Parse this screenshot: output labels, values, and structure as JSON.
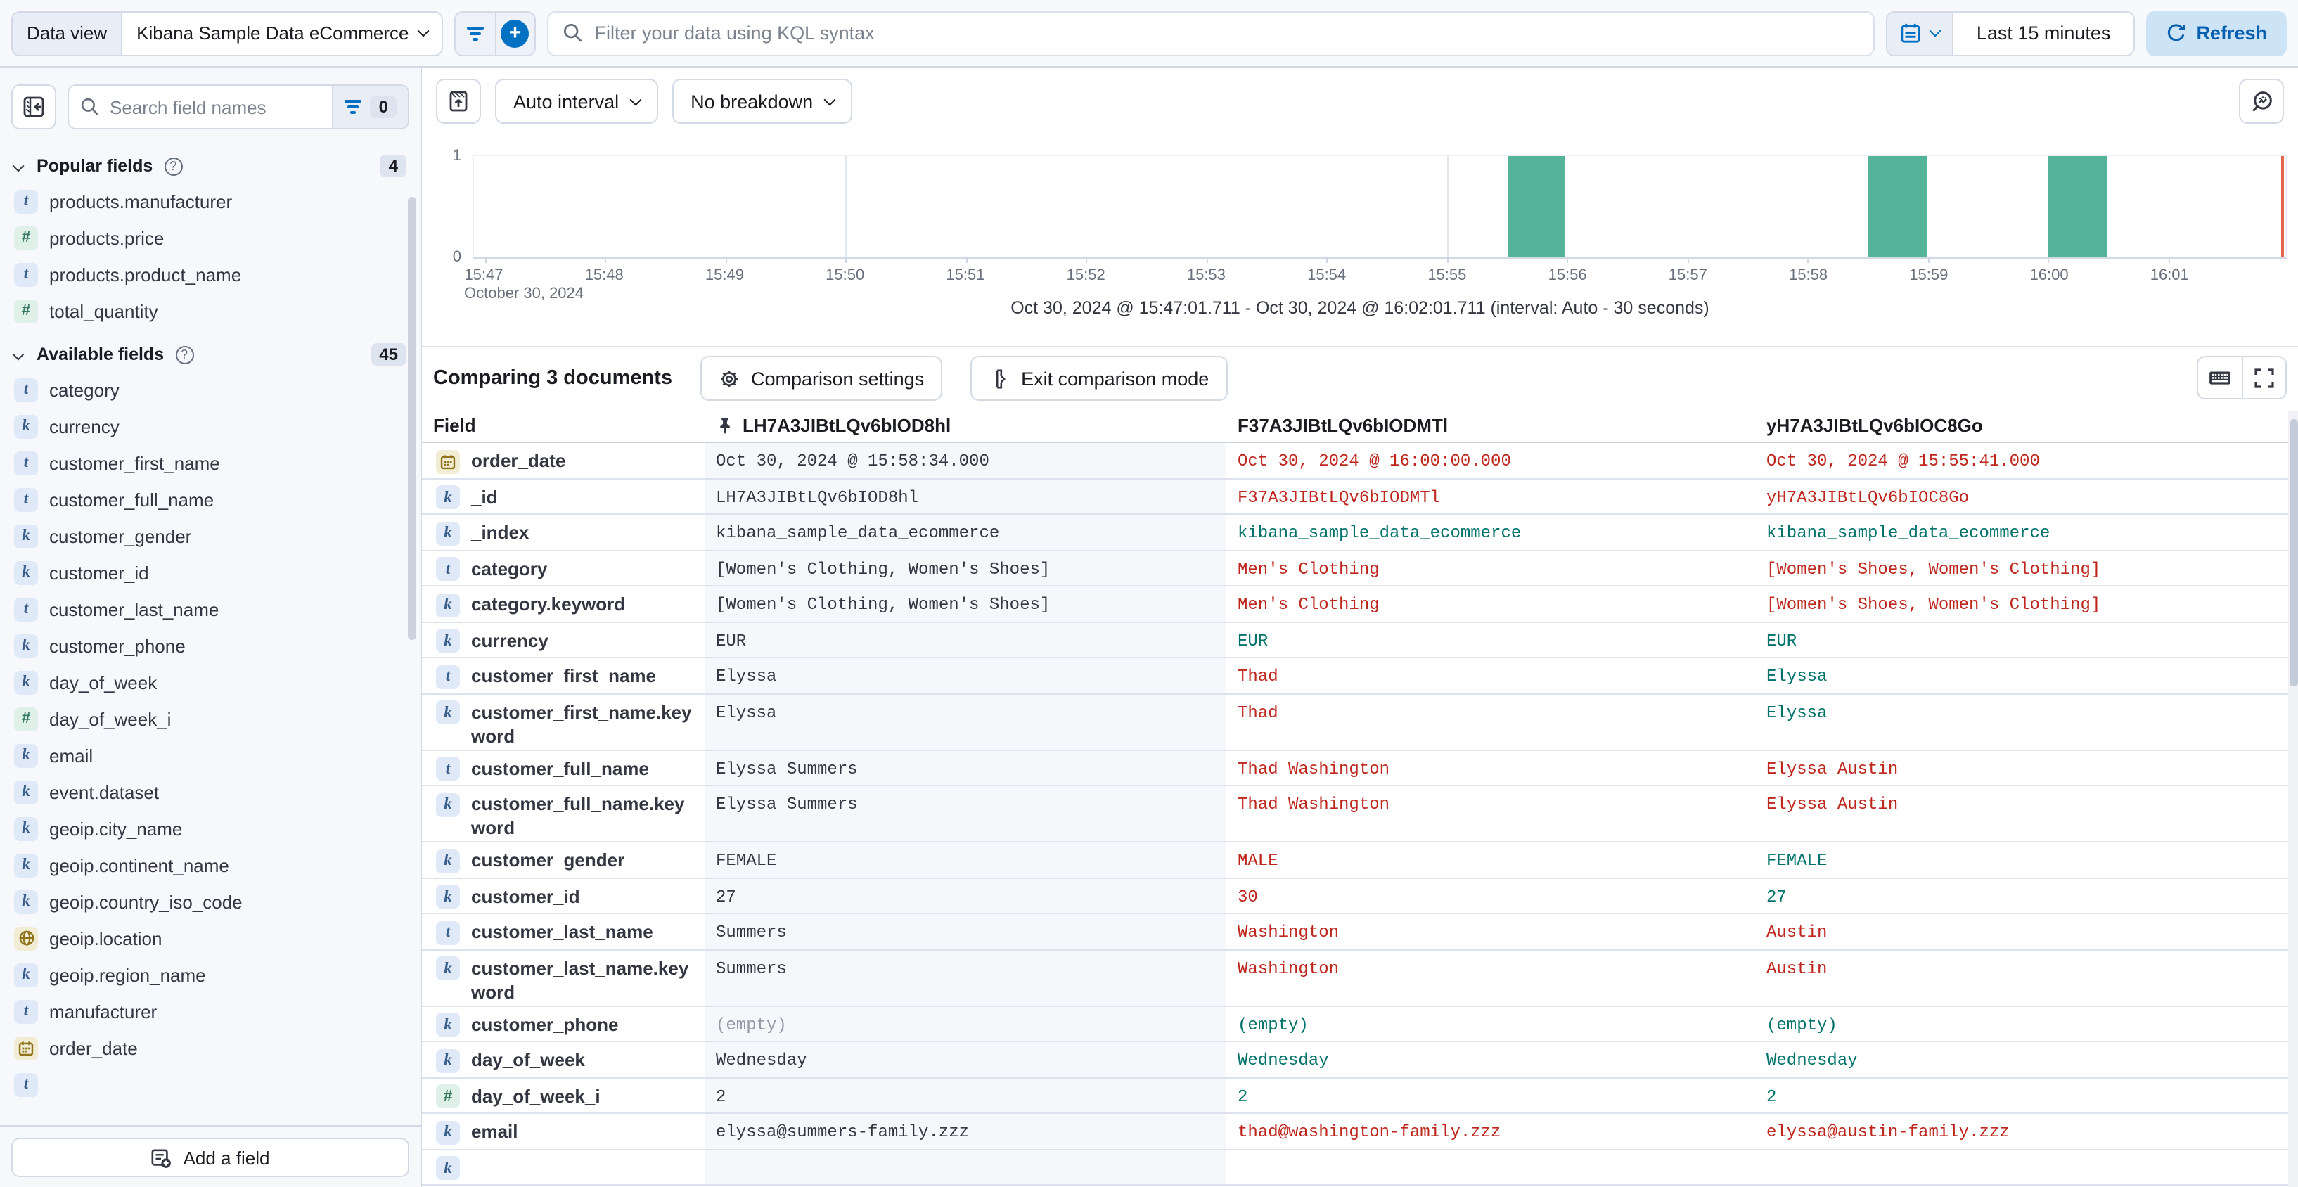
{
  "top_bar": {
    "data_view_label": "Data view",
    "data_view_value": "Kibana Sample Data eCommerce",
    "kql_placeholder": "Filter your data using KQL syntax",
    "time_range": "Last 15 minutes",
    "refresh_label": "Refresh"
  },
  "sidebar": {
    "search_placeholder": "Search field names",
    "filter_count": "0",
    "sections": [
      {
        "title": "Popular fields",
        "count": "4",
        "items": [
          {
            "type": "t",
            "label": "products.manufacturer"
          },
          {
            "type": "n",
            "label": "products.price"
          },
          {
            "type": "t",
            "label": "products.product_name"
          },
          {
            "type": "n",
            "label": "total_quantity"
          }
        ]
      },
      {
        "title": "Available fields",
        "count": "45",
        "items": [
          {
            "type": "t",
            "label": "category"
          },
          {
            "type": "k",
            "label": "currency"
          },
          {
            "type": "t",
            "label": "customer_first_name"
          },
          {
            "type": "t",
            "label": "customer_full_name"
          },
          {
            "type": "k",
            "label": "customer_gender"
          },
          {
            "type": "k",
            "label": "customer_id"
          },
          {
            "type": "t",
            "label": "customer_last_name"
          },
          {
            "type": "k",
            "label": "customer_phone"
          },
          {
            "type": "k",
            "label": "day_of_week"
          },
          {
            "type": "n",
            "label": "day_of_week_i"
          },
          {
            "type": "k",
            "label": "email"
          },
          {
            "type": "k",
            "label": "event.dataset"
          },
          {
            "type": "k",
            "label": "geoip.city_name"
          },
          {
            "type": "k",
            "label": "geoip.continent_name"
          },
          {
            "type": "k",
            "label": "geoip.country_iso_code"
          },
          {
            "type": "g",
            "label": "geoip.location"
          },
          {
            "type": "k",
            "label": "geoip.region_name"
          },
          {
            "type": "t",
            "label": "manufacturer"
          },
          {
            "type": "d",
            "label": "order_date"
          },
          {
            "type": "t",
            "label": ""
          }
        ]
      }
    ],
    "add_field_label": "Add a field"
  },
  "chart_toolbar": {
    "interval_label": "Auto interval",
    "breakdown_label": "No breakdown"
  },
  "chart_data": {
    "type": "bar",
    "title": "",
    "xlabel": "",
    "ylabel": "",
    "x_start": "15:47",
    "x_ticks": [
      "15:47",
      "15:48",
      "15:49",
      "15:50",
      "15:51",
      "15:52",
      "15:53",
      "15:54",
      "15:55",
      "15:56",
      "15:57",
      "15:58",
      "15:59",
      "16:00",
      "16:01"
    ],
    "x_date_label": "October 30, 2024",
    "y_ticks": [
      "1",
      "0"
    ],
    "ylim": [
      0,
      1
    ],
    "interval_seconds": 30,
    "bars": [
      {
        "x": "15:55:30",
        "value": 1
      },
      {
        "x": "15:58:30",
        "value": 1
      },
      {
        "x": "16:00:00",
        "value": 1
      }
    ],
    "bar_color": "#54b399",
    "time_marker_color": "#e7664c",
    "caption": "Oct 30, 2024 @ 15:47:01.711 - Oct 30, 2024 @ 16:02:01.711 (interval: Auto - 30 seconds)"
  },
  "comparison": {
    "title": "Comparing 3 documents",
    "settings_label": "Comparison settings",
    "exit_label": "Exit comparison mode"
  },
  "table": {
    "field_header": "Field",
    "columns": [
      "LH7A3JIBtLQv6bIOD8hl",
      "F37A3JIBtLQv6bIODMTl",
      "yH7A3JIBtLQv6bIOC8Go"
    ],
    "rows": [
      {
        "field": "order_date",
        "icon": "d",
        "wrap": false,
        "base": {
          "t": "Oct 30, 2024 @ 15:58:34.000",
          "c": "base"
        },
        "c1": {
          "t": "Oct 30, 2024 @ 16:00:00.000",
          "c": "diff"
        },
        "c2": {
          "t": "Oct 30, 2024 @ 15:55:41.000",
          "c": "diff"
        }
      },
      {
        "field": "_id",
        "icon": "k",
        "wrap": false,
        "base": {
          "t": "LH7A3JIBtLQv6bIOD8hl",
          "c": "base"
        },
        "c1": {
          "t": "F37A3JIBtLQv6bIODMTl",
          "c": "diff"
        },
        "c2": {
          "t": "yH7A3JIBtLQv6bIOC8Go",
          "c": "diff"
        }
      },
      {
        "field": "_index",
        "icon": "k",
        "wrap": false,
        "base": {
          "t": "kibana_sample_data_ecommerce",
          "c": "base"
        },
        "c1": {
          "t": "kibana_sample_data_ecommerce",
          "c": "match"
        },
        "c2": {
          "t": "kibana_sample_data_ecommerce",
          "c": "match"
        }
      },
      {
        "field": "category",
        "icon": "t",
        "wrap": false,
        "base": {
          "t": "[Women's Clothing, Women's Shoes]",
          "c": "base"
        },
        "c1": {
          "t": "Men's Clothing",
          "c": "diff"
        },
        "c2": {
          "t": "[Women's Shoes, Women's Clothing]",
          "c": "diff"
        }
      },
      {
        "field": "category.keyword",
        "icon": "k",
        "wrap": false,
        "base": {
          "t": "[Women's Clothing, Women's Shoes]",
          "c": "base"
        },
        "c1": {
          "t": "Men's Clothing",
          "c": "diff"
        },
        "c2": {
          "t": "[Women's Shoes, Women's Clothing]",
          "c": "diff"
        }
      },
      {
        "field": "currency",
        "icon": "k",
        "wrap": false,
        "base": {
          "t": "EUR",
          "c": "base"
        },
        "c1": {
          "t": "EUR",
          "c": "match"
        },
        "c2": {
          "t": "EUR",
          "c": "match"
        }
      },
      {
        "field": "customer_first_name",
        "icon": "t",
        "wrap": false,
        "base": {
          "t": "Elyssa",
          "c": "base"
        },
        "c1": {
          "t": "Thad",
          "c": "diff"
        },
        "c2": {
          "t": "Elyssa",
          "c": "match"
        }
      },
      {
        "field": "customer_first_name.keyword",
        "icon": "k",
        "wrap": true,
        "base": {
          "t": "Elyssa",
          "c": "base"
        },
        "c1": {
          "t": "Thad",
          "c": "diff"
        },
        "c2": {
          "t": "Elyssa",
          "c": "match"
        }
      },
      {
        "field": "customer_full_name",
        "icon": "t",
        "wrap": false,
        "base": {
          "t": "Elyssa Summers",
          "c": "base"
        },
        "c1": {
          "t": "Thad Washington",
          "c": "diff"
        },
        "c2": {
          "t": "Elyssa Austin",
          "c": "diff"
        }
      },
      {
        "field": "customer_full_name.keyword",
        "icon": "k",
        "wrap": true,
        "base": {
          "t": "Elyssa Summers",
          "c": "base"
        },
        "c1": {
          "t": "Thad Washington",
          "c": "diff"
        },
        "c2": {
          "t": "Elyssa Austin",
          "c": "diff"
        }
      },
      {
        "field": "customer_gender",
        "icon": "k",
        "wrap": false,
        "base": {
          "t": "FEMALE",
          "c": "base"
        },
        "c1": {
          "t": "MALE",
          "c": "diff"
        },
        "c2": {
          "t": "FEMALE",
          "c": "match"
        }
      },
      {
        "field": "customer_id",
        "icon": "k",
        "wrap": false,
        "base": {
          "t": "27",
          "c": "base"
        },
        "c1": {
          "t": "30",
          "c": "diff"
        },
        "c2": {
          "t": "27",
          "c": "match"
        }
      },
      {
        "field": "customer_last_name",
        "icon": "t",
        "wrap": false,
        "base": {
          "t": "Summers",
          "c": "base"
        },
        "c1": {
          "t": "Washington",
          "c": "diff"
        },
        "c2": {
          "t": "Austin",
          "c": "diff"
        }
      },
      {
        "field": "customer_last_name.keyword",
        "icon": "k",
        "wrap": true,
        "base": {
          "t": "Summers",
          "c": "base"
        },
        "c1": {
          "t": "Washington",
          "c": "diff"
        },
        "c2": {
          "t": "Austin",
          "c": "diff"
        }
      },
      {
        "field": "customer_phone",
        "icon": "k",
        "wrap": false,
        "base": {
          "t": "(empty)",
          "c": "empty"
        },
        "c1": {
          "t": "(empty)",
          "c": "match"
        },
        "c2": {
          "t": "(empty)",
          "c": "match"
        }
      },
      {
        "field": "day_of_week",
        "icon": "k",
        "wrap": false,
        "base": {
          "t": "Wednesday",
          "c": "base"
        },
        "c1": {
          "t": "Wednesday",
          "c": "match"
        },
        "c2": {
          "t": "Wednesday",
          "c": "match"
        }
      },
      {
        "field": "day_of_week_i",
        "icon": "n",
        "wrap": false,
        "base": {
          "t": "2",
          "c": "base"
        },
        "c1": {
          "t": "2",
          "c": "match"
        },
        "c2": {
          "t": "2",
          "c": "match"
        }
      },
      {
        "field": "email",
        "icon": "k",
        "wrap": false,
        "base": {
          "t": "elyssa@summers-family.zzz",
          "c": "base"
        },
        "c1": {
          "t": "thad@washington-family.zzz",
          "c": "diff"
        },
        "c2": {
          "t": "elyssa@austin-family.zzz",
          "c": "diff"
        }
      },
      {
        "field": "",
        "icon": "k",
        "wrap": false,
        "base": {
          "t": "",
          "c": "base"
        },
        "c1": {
          "t": "",
          "c": "base"
        },
        "c2": {
          "t": "",
          "c": "base"
        }
      }
    ]
  }
}
